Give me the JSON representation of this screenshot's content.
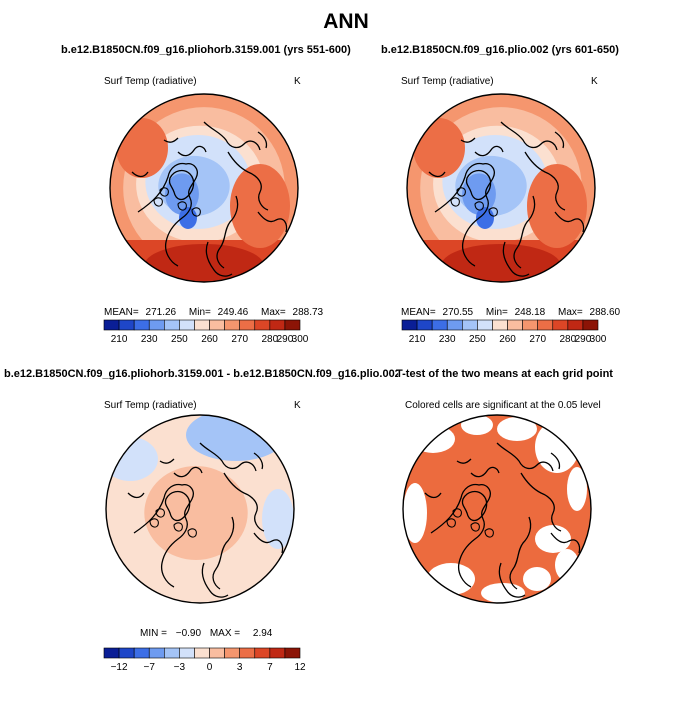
{
  "main_title": "ANN",
  "panels": {
    "p1": {
      "title": "b.e12.B1850CN.f09_g16.pliohorb.3159.001 (yrs 551-600)",
      "var_label": "Surf Temp (radiative)",
      "units": "K",
      "mean_label": "MEAN=",
      "mean": "271.26",
      "min_label": "Min=",
      "min": "249.46",
      "max_label": "Max=",
      "max": "288.73"
    },
    "p2": {
      "title": "b.e12.B1850CN.f09_g16.plio.002 (yrs 601-650)",
      "var_label": "Surf Temp (radiative)",
      "units": "K",
      "mean_label": "MEAN=",
      "mean": "270.55",
      "min_label": "Min=",
      "min": "248.18",
      "max_label": "Max=",
      "max": "288.60"
    },
    "p3": {
      "title": "b.e12.B1850CN.f09_g16.pliohorb.3159.001 - b.e12.B1850CN.f09_g16.plio.002",
      "var_label": "Surf Temp (radiative)",
      "units": "K",
      "min_label": "MIN =",
      "min": "−0.90",
      "max_label": "MAX =",
      "max": "2.94"
    },
    "p4": {
      "title": "T-test of the two means at each grid point",
      "sig_label": "Colored cells are significant at the 0.05 level"
    }
  },
  "colors": {
    "ramp": [
      "#0a1e96",
      "#1e46c8",
      "#3c6ee6",
      "#6e9bf0",
      "#a4c4f7",
      "#d2e1fa",
      "#fbe0d0",
      "#f9bda0",
      "#f5966e",
      "#ec6e46",
      "#dc4626",
      "#c02814",
      "#8c1406"
    ],
    "land": "#000000",
    "map_border": "#000000",
    "ocean_bg": "#ffffff",
    "sig_fill": "#ec6b3e"
  },
  "chart_data": [
    {
      "type": "heatmap",
      "panel": "p1",
      "projection": "north polar stereographic",
      "title": "b.e12.B1850CN.f09_g16.pliohorb.3159.001 (yrs 551-600)",
      "variable": "Surf Temp (radiative)",
      "units": "K",
      "colorbar": {
        "levels": [
          210,
          220,
          230,
          240,
          250,
          255,
          260,
          265,
          270,
          275,
          280,
          290,
          300
        ],
        "tick_labels": [
          "210",
          "230",
          "250",
          "260",
          "270",
          "280",
          "290",
          "300"
        ]
      },
      "stats": {
        "mean": 271.26,
        "min": 249.46,
        "max": 288.73
      }
    },
    {
      "type": "heatmap",
      "panel": "p2",
      "projection": "north polar stereographic",
      "title": "b.e12.B1850CN.f09_g16.plio.002 (yrs 601-650)",
      "variable": "Surf Temp (radiative)",
      "units": "K",
      "colorbar": {
        "levels": [
          210,
          220,
          230,
          240,
          250,
          255,
          260,
          265,
          270,
          275,
          280,
          290,
          300
        ],
        "tick_labels": [
          "210",
          "230",
          "250",
          "260",
          "270",
          "280",
          "290",
          "300"
        ]
      },
      "stats": {
        "mean": 270.55,
        "min": 248.18,
        "max": 288.6
      }
    },
    {
      "type": "heatmap",
      "panel": "p3",
      "projection": "north polar stereographic",
      "title": "b.e12.B1850CN.f09_g16.pliohorb.3159.001 - b.e12.B1850CN.f09_g16.plio.002",
      "variable": "Surf Temp (radiative)",
      "units": "K",
      "colorbar": {
        "levels": [
          -12,
          -9,
          -7,
          -5,
          -3,
          -1,
          0,
          1,
          3,
          5,
          7,
          9,
          12
        ],
        "tick_labels": [
          "−12",
          "−7",
          "−3",
          "0",
          "3",
          "7",
          "12"
        ]
      },
      "stats": {
        "min": -0.9,
        "max": 2.94
      }
    },
    {
      "type": "heatmap",
      "panel": "p4",
      "projection": "north polar stereographic",
      "title": "T-test of the two means at each grid point",
      "note": "Colored cells are significant at the 0.05 level",
      "significance_level": 0.05
    }
  ]
}
